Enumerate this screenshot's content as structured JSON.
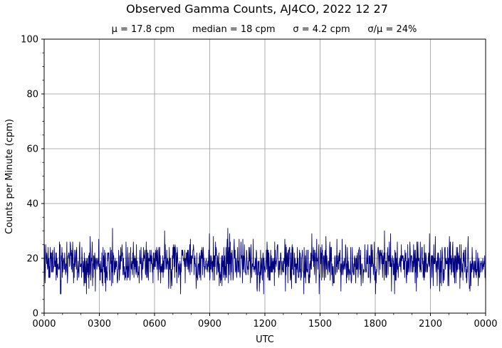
{
  "chart_data": {
    "type": "line",
    "title": "Observed Gamma Counts, AJ4CO, 2022 12 27",
    "subtitle": "μ = 17.8 cpm      median = 18 cpm      σ = 4.2 cpm      σ/μ = 24%",
    "xlabel": "UTC",
    "ylabel": "Counts per Minute (cpm)",
    "x_unit": "minutes",
    "xlim": [
      0,
      1440
    ],
    "ylim": [
      0,
      100
    ],
    "x_ticks": [
      0,
      180,
      360,
      540,
      720,
      900,
      1080,
      1260,
      1440
    ],
    "x_tick_labels": [
      "0000",
      "0300",
      "0600",
      "0900",
      "1200",
      "1500",
      "1800",
      "2100",
      "0000"
    ],
    "y_ticks": [
      0,
      20,
      40,
      60,
      80,
      100
    ],
    "y_tick_labels": [
      "0",
      "20",
      "40",
      "60",
      "80",
      "100"
    ],
    "grid": true,
    "line_color": "#00007f",
    "series": [
      {
        "mean": 17.8,
        "median": 18,
        "std": 4.2,
        "min": 7,
        "max": 32,
        "samples_per_minute": 1,
        "range_x": [
          0,
          1440
        ]
      }
    ]
  }
}
